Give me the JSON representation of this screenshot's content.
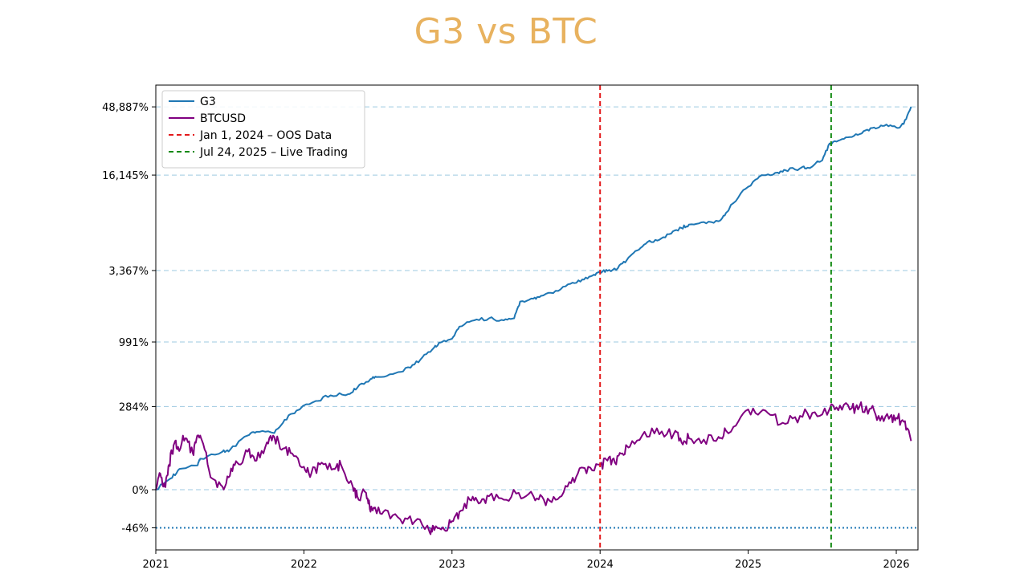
{
  "title": "G3 vs BTC",
  "colors": {
    "title": "#e8b25f",
    "g3": "#1f77b4",
    "btc": "#800080",
    "oos": "#e31a1c",
    "live": "#138a13",
    "grid": "#9ecae1",
    "baseline": "#1f77b4"
  },
  "chart_data": {
    "type": "line",
    "title": "G3 vs BTC",
    "xlabel": "",
    "ylabel": "",
    "y_scale": "log of (1 + return)",
    "xlim": [
      2021.0,
      2026.13
    ],
    "ylim_return_pct": [
      -65,
      90000
    ],
    "x_ticks": [
      {
        "value": 2021,
        "label": "2021"
      },
      {
        "value": 2022,
        "label": "2022"
      },
      {
        "value": 2023,
        "label": "2023"
      },
      {
        "value": 2024,
        "label": "2024"
      },
      {
        "value": 2025,
        "label": "2025"
      },
      {
        "value": 2026,
        "label": "2026"
      }
    ],
    "y_ticks": [
      {
        "value": 48887,
        "label": "48,887%"
      },
      {
        "value": 16145,
        "label": "16,145%"
      },
      {
        "value": 3367,
        "label": "3,367%"
      },
      {
        "value": 991,
        "label": "991%"
      },
      {
        "value": 284,
        "label": "284%"
      },
      {
        "value": 0,
        "label": "0%"
      },
      {
        "value": -46,
        "label": "-46%"
      }
    ],
    "grid": "horizontal dashed at y ticks",
    "baseline": {
      "value": -46,
      "style": "dotted"
    },
    "vlines": [
      {
        "x": 2024.0,
        "label": "Jan 1, 2024 – OOS Data",
        "color_key": "oos"
      },
      {
        "x": 2025.56,
        "label": "Jul 24, 2025 – Live Trading",
        "color_key": "live"
      }
    ],
    "legend_position": "upper-left",
    "series": [
      {
        "name": "G3",
        "color_key": "g3",
        "x": [
          2021.0,
          2021.1,
          2021.16,
          2021.28,
          2021.3,
          2021.45,
          2021.5,
          2021.62,
          2021.68,
          2021.8,
          2021.87,
          2021.95,
          2022.08,
          2022.18,
          2022.3,
          2022.36,
          2022.45,
          2022.5,
          2022.62,
          2022.72,
          2022.8,
          2022.88,
          2022.92,
          2023.0,
          2023.05,
          2023.15,
          2023.25,
          2023.35,
          2023.42,
          2023.46,
          2023.55,
          2023.6,
          2023.7,
          2023.8,
          2023.88,
          2023.95,
          2024.0,
          2024.05,
          2024.12,
          2024.18,
          2024.25,
          2024.32,
          2024.4,
          2024.48,
          2024.55,
          2024.6,
          2024.7,
          2024.8,
          2024.85,
          2024.95,
          2025.05,
          2025.1,
          2025.2,
          2025.25,
          2025.35,
          2025.4,
          2025.5,
          2025.55,
          2025.62,
          2025.7,
          2025.78,
          2025.85,
          2025.92,
          2026.0,
          2026.05,
          2026.1
        ],
        "values": [
          0,
          20,
          40,
          48,
          65,
          85,
          90,
          140,
          155,
          150,
          210,
          260,
          320,
          360,
          370,
          420,
          500,
          520,
          560,
          620,
          750,
          900,
          980,
          1050,
          1300,
          1450,
          1500,
          1450,
          1500,
          2000,
          2100,
          2200,
          2400,
          2700,
          2900,
          3100,
          3300,
          3350,
          3500,
          4000,
          4700,
          5400,
          5600,
          6200,
          6800,
          7200,
          7500,
          7600,
          8700,
          12000,
          15000,
          16100,
          16800,
          17500,
          18000,
          18200,
          20500,
          27000,
          28500,
          30000,
          33000,
          35000,
          36000,
          35000,
          37000,
          48887
        ]
      },
      {
        "name": "BTCUSD",
        "color_key": "btc",
        "x": [
          2021.0,
          2021.03,
          2021.06,
          2021.09,
          2021.12,
          2021.15,
          2021.2,
          2021.25,
          2021.28,
          2021.32,
          2021.38,
          2021.45,
          2021.5,
          2021.55,
          2021.62,
          2021.68,
          2021.75,
          2021.8,
          2021.86,
          2021.92,
          2022.0,
          2022.05,
          2022.12,
          2022.2,
          2022.25,
          2022.33,
          2022.36,
          2022.42,
          2022.45,
          2022.48,
          2022.55,
          2022.65,
          2022.75,
          2022.85,
          2022.88,
          2022.95,
          2023.0,
          2023.05,
          2023.12,
          2023.18,
          2023.25,
          2023.35,
          2023.45,
          2023.55,
          2023.62,
          2023.7,
          2023.78,
          2023.85,
          2023.92,
          2024.0,
          2024.05,
          2024.1,
          2024.15,
          2024.2,
          2024.3,
          2024.4,
          2024.5,
          2024.55,
          2024.6,
          2024.7,
          2024.8,
          2024.85,
          2024.95,
          2025.05,
          2025.15,
          2025.25,
          2025.35,
          2025.45,
          2025.55,
          2025.62,
          2025.7,
          2025.75,
          2025.82,
          2025.88,
          2025.95,
          2026.0,
          2026.05,
          2026.1
        ],
        "values": [
          0,
          30,
          5,
          50,
          105,
          100,
          130,
          80,
          140,
          110,
          20,
          5,
          25,
          55,
          85,
          60,
          115,
          135,
          95,
          80,
          45,
          30,
          55,
          40,
          50,
          5,
          -10,
          -5,
          -30,
          -25,
          -28,
          -38,
          -40,
          -50,
          -48,
          -48,
          -40,
          -30,
          -15,
          -20,
          -10,
          -15,
          -5,
          -10,
          -15,
          -15,
          5,
          30,
          45,
          50,
          60,
          55,
          80,
          100,
          155,
          145,
          150,
          115,
          130,
          125,
          135,
          160,
          225,
          245,
          235,
          190,
          230,
          250,
          270,
          290,
          275,
          280,
          270,
          230,
          215,
          220,
          200,
          120
        ]
      }
    ]
  }
}
